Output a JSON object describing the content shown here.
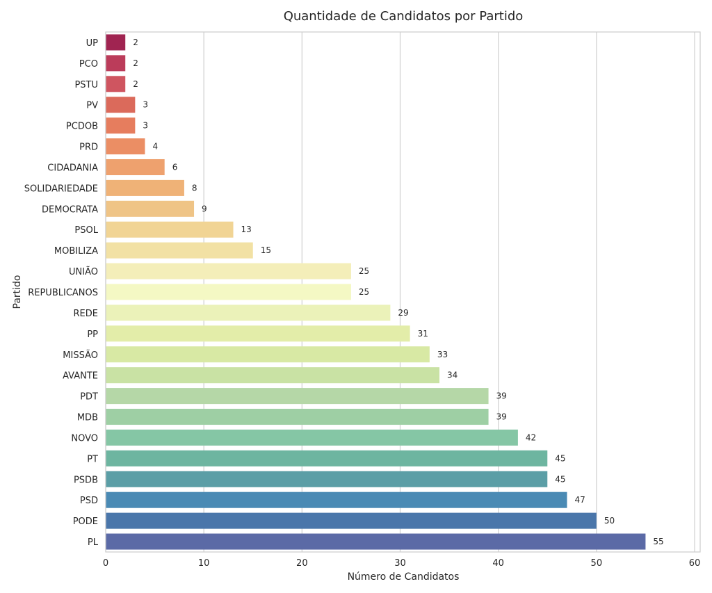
{
  "chart_data": {
    "type": "bar",
    "orientation": "horizontal",
    "title": "Quantidade de Candidatos por Partido",
    "xlabel": "Número de Candidatos",
    "ylabel": "Partido",
    "xlim": [
      0,
      60
    ],
    "xticks": [
      0,
      10,
      20,
      30,
      40,
      50,
      60
    ],
    "grid": "vertical",
    "categories": [
      "UP",
      "PCO",
      "PSTU",
      "PV",
      "PCDOB",
      "PRD",
      "CIDADANIA",
      "SOLIDARIEDADE",
      "DEMOCRATA",
      "PSOL",
      "MOBILIZA",
      "UNIÃO",
      "REPUBLICANOS",
      "REDE",
      "PP",
      "MISSÃO",
      "AVANTE",
      "PDT",
      "MDB",
      "NOVO",
      "PT",
      "PSDB",
      "PSD",
      "PODE",
      "PL"
    ],
    "values": [
      2,
      2,
      2,
      3,
      3,
      4,
      6,
      8,
      9,
      13,
      15,
      25,
      25,
      29,
      31,
      33,
      34,
      39,
      39,
      42,
      45,
      45,
      47,
      50,
      55
    ],
    "colors": [
      "#a02451",
      "#bb3c5a",
      "#cf5560",
      "#db6a5b",
      "#e67d5e",
      "#eb8e64",
      "#eea16e",
      "#efb277",
      "#efc486",
      "#f1d494",
      "#f2e1a4",
      "#f4eeb9",
      "#f4f8c4",
      "#ebf2b9",
      "#e3eda9",
      "#d8e9a4",
      "#c9e2a4",
      "#b5d7a7",
      "#9ecfa4",
      "#85c6a5",
      "#6db5a0",
      "#5b9ea6",
      "#4a8ab4",
      "#4a76aa",
      "#5b6aa6"
    ]
  }
}
